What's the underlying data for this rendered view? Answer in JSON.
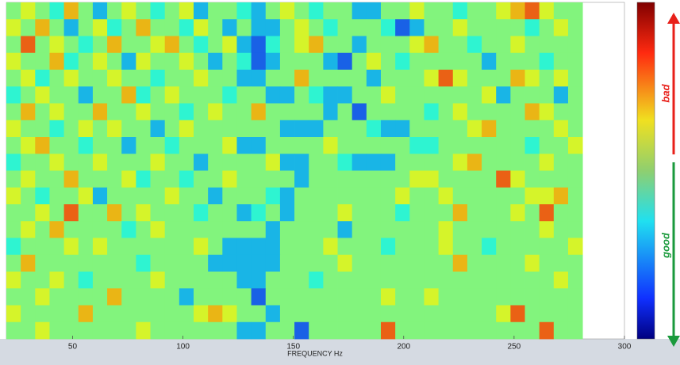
{
  "chart_data": {
    "type": "heatmap",
    "x_label": "FREQUENCY Hz",
    "xlim": [
      20,
      300
    ],
    "xticks": [
      50,
      100,
      150,
      200,
      250,
      300
    ],
    "data_xrange": [
      20,
      281
    ],
    "colormap": "jet",
    "clim": [
      0,
      10
    ],
    "annotations": [
      "bad",
      "good"
    ],
    "values": [
      [
        5,
        6,
        5,
        4,
        7,
        5,
        3,
        5,
        6,
        5,
        4,
        5,
        6,
        3,
        5,
        5,
        4,
        3,
        5,
        6,
        5,
        4,
        5,
        5,
        3,
        3,
        5,
        5,
        6,
        5,
        5,
        4,
        5,
        5,
        6,
        7,
        8,
        6,
        5,
        5
      ],
      [
        6,
        5,
        7,
        5,
        3,
        5,
        6,
        4,
        5,
        7,
        5,
        5,
        4,
        6,
        5,
        3,
        5,
        3,
        3,
        5,
        6,
        5,
        4,
        5,
        5,
        5,
        4,
        2,
        3,
        5,
        5,
        6,
        5,
        5,
        5,
        5,
        4,
        5,
        6,
        5
      ],
      [
        5,
        8,
        5,
        6,
        5,
        4,
        5,
        7,
        5,
        5,
        6,
        7,
        5,
        4,
        5,
        6,
        3,
        2,
        4,
        5,
        6,
        7,
        5,
        5,
        3,
        5,
        5,
        5,
        6,
        7,
        5,
        5,
        4,
        5,
        5,
        6,
        5,
        5,
        5,
        5
      ],
      [
        6,
        5,
        5,
        7,
        4,
        5,
        6,
        5,
        3,
        6,
        5,
        5,
        6,
        5,
        3,
        5,
        4,
        2,
        3,
        5,
        5,
        5,
        3,
        2,
        5,
        6,
        5,
        4,
        5,
        5,
        5,
        5,
        5,
        3,
        5,
        5,
        5,
        4,
        5,
        5
      ],
      [
        5,
        6,
        4,
        5,
        6,
        5,
        5,
        6,
        5,
        5,
        4,
        5,
        5,
        6,
        5,
        5,
        3,
        3,
        5,
        5,
        7,
        5,
        5,
        5,
        5,
        3,
        5,
        5,
        5,
        6,
        8,
        6,
        5,
        5,
        5,
        7,
        6,
        5,
        6,
        5
      ],
      [
        4,
        5,
        6,
        5,
        5,
        3,
        5,
        5,
        7,
        4,
        5,
        6,
        5,
        5,
        5,
        4,
        5,
        5,
        3,
        3,
        5,
        4,
        3,
        3,
        5,
        5,
        6,
        5,
        5,
        5,
        5,
        5,
        5,
        6,
        3,
        5,
        5,
        5,
        3,
        5
      ],
      [
        5,
        7,
        5,
        6,
        5,
        5,
        7,
        5,
        5,
        6,
        5,
        5,
        4,
        5,
        6,
        5,
        5,
        7,
        5,
        5,
        5,
        5,
        3,
        5,
        2,
        5,
        5,
        5,
        5,
        4,
        5,
        6,
        5,
        5,
        5,
        5,
        7,
        6,
        5,
        5
      ],
      [
        6,
        5,
        5,
        4,
        5,
        6,
        5,
        6,
        5,
        5,
        3,
        5,
        6,
        5,
        5,
        5,
        5,
        5,
        5,
        3,
        3,
        3,
        5,
        5,
        5,
        4,
        3,
        3,
        5,
        5,
        5,
        5,
        6,
        7,
        5,
        5,
        5,
        5,
        6,
        5
      ],
      [
        5,
        6,
        7,
        5,
        5,
        4,
        5,
        5,
        3,
        5,
        5,
        4,
        5,
        5,
        5,
        6,
        3,
        3,
        5,
        5,
        5,
        5,
        6,
        5,
        5,
        5,
        5,
        5,
        4,
        4,
        5,
        5,
        5,
        5,
        5,
        5,
        4,
        5,
        5,
        6
      ],
      [
        4,
        5,
        5,
        6,
        5,
        5,
        6,
        5,
        5,
        5,
        6,
        5,
        5,
        3,
        5,
        5,
        5,
        5,
        6,
        3,
        3,
        5,
        5,
        4,
        3,
        3,
        3,
        5,
        5,
        5,
        5,
        6,
        7,
        5,
        5,
        5,
        5,
        6,
        5,
        5
      ],
      [
        5,
        6,
        5,
        5,
        7,
        5,
        5,
        5,
        6,
        4,
        5,
        5,
        4,
        5,
        5,
        6,
        5,
        5,
        5,
        5,
        3,
        5,
        5,
        5,
        5,
        5,
        5,
        5,
        6,
        6,
        5,
        5,
        5,
        5,
        8,
        6,
        5,
        5,
        5,
        5
      ],
      [
        6,
        5,
        4,
        5,
        5,
        6,
        3,
        5,
        5,
        5,
        5,
        6,
        5,
        5,
        3,
        5,
        5,
        5,
        4,
        3,
        5,
        5,
        5,
        5,
        5,
        5,
        5,
        6,
        5,
        5,
        6,
        5,
        5,
        5,
        5,
        5,
        6,
        6,
        7,
        5
      ],
      [
        5,
        5,
        6,
        5,
        8,
        5,
        5,
        7,
        5,
        6,
        5,
        5,
        5,
        4,
        5,
        5,
        3,
        4,
        5,
        3,
        5,
        5,
        5,
        6,
        5,
        5,
        5,
        4,
        5,
        5,
        5,
        7,
        5,
        5,
        5,
        6,
        5,
        8,
        5,
        5
      ],
      [
        5,
        6,
        5,
        7,
        5,
        5,
        5,
        5,
        4,
        5,
        6,
        5,
        5,
        5,
        5,
        5,
        5,
        5,
        3,
        5,
        5,
        5,
        5,
        3,
        5,
        5,
        5,
        5,
        5,
        5,
        6,
        5,
        5,
        5,
        5,
        5,
        5,
        6,
        5,
        5
      ],
      [
        4,
        5,
        5,
        5,
        6,
        5,
        6,
        5,
        5,
        5,
        5,
        5,
        5,
        6,
        5,
        3,
        3,
        3,
        3,
        5,
        5,
        5,
        6,
        5,
        5,
        5,
        4,
        5,
        5,
        5,
        6,
        5,
        5,
        4,
        5,
        5,
        5,
        5,
        5,
        6
      ],
      [
        5,
        7,
        5,
        5,
        5,
        5,
        5,
        5,
        5,
        4,
        5,
        5,
        5,
        5,
        3,
        3,
        3,
        3,
        3,
        5,
        5,
        5,
        5,
        6,
        5,
        5,
        5,
        5,
        5,
        5,
        5,
        7,
        5,
        5,
        5,
        5,
        6,
        5,
        5,
        5
      ],
      [
        6,
        5,
        5,
        6,
        5,
        4,
        5,
        5,
        5,
        5,
        6,
        5,
        5,
        5,
        5,
        5,
        3,
        3,
        5,
        5,
        5,
        4,
        5,
        5,
        5,
        5,
        5,
        5,
        5,
        5,
        5,
        5,
        5,
        5,
        5,
        5,
        5,
        5,
        6,
        5
      ],
      [
        5,
        5,
        6,
        5,
        5,
        5,
        5,
        7,
        5,
        5,
        5,
        5,
        3,
        5,
        5,
        5,
        5,
        2,
        5,
        5,
        5,
        5,
        5,
        5,
        5,
        5,
        6,
        5,
        5,
        6,
        5,
        5,
        5,
        5,
        5,
        5,
        5,
        5,
        5,
        5
      ],
      [
        6,
        5,
        5,
        5,
        5,
        7,
        5,
        5,
        5,
        5,
        5,
        5,
        5,
        6,
        7,
        6,
        5,
        5,
        3,
        5,
        5,
        5,
        5,
        5,
        5,
        5,
        5,
        5,
        5,
        5,
        5,
        5,
        5,
        5,
        6,
        8,
        5,
        5,
        5,
        5
      ],
      [
        5,
        5,
        6,
        5,
        5,
        5,
        5,
        5,
        5,
        6,
        5,
        5,
        5,
        5,
        5,
        5,
        3,
        3,
        5,
        5,
        2,
        5,
        5,
        5,
        5,
        5,
        8,
        5,
        5,
        5,
        5,
        5,
        5,
        5,
        5,
        5,
        5,
        8,
        5,
        5
      ]
    ]
  }
}
